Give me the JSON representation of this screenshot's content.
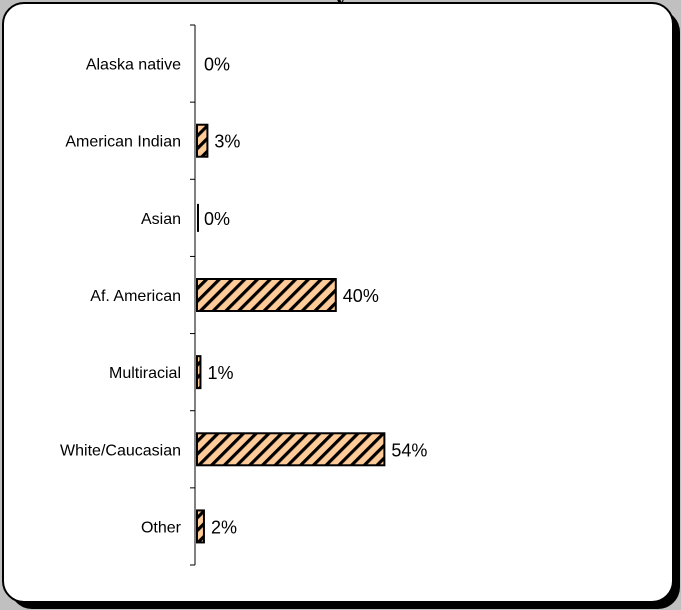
{
  "chart_data": {
    "type": "bar",
    "orientation": "horizontal",
    "title": "",
    "xlabel": "",
    "ylabel": "",
    "categories": [
      "Alaska native",
      "American Indian",
      "Asian",
      "Af. American",
      "Multiracial",
      "White/Caucasian",
      "Other"
    ],
    "values": [
      0,
      3,
      0,
      40,
      1,
      54,
      2
    ],
    "value_labels": [
      "0%",
      "3%",
      "0%",
      "40%",
      "1%",
      "54%",
      "2%"
    ],
    "xlim": [
      0,
      100
    ],
    "grid": false,
    "legend": "none",
    "bar_fill": "#ffcc99",
    "bar_hatch": "#000000"
  }
}
